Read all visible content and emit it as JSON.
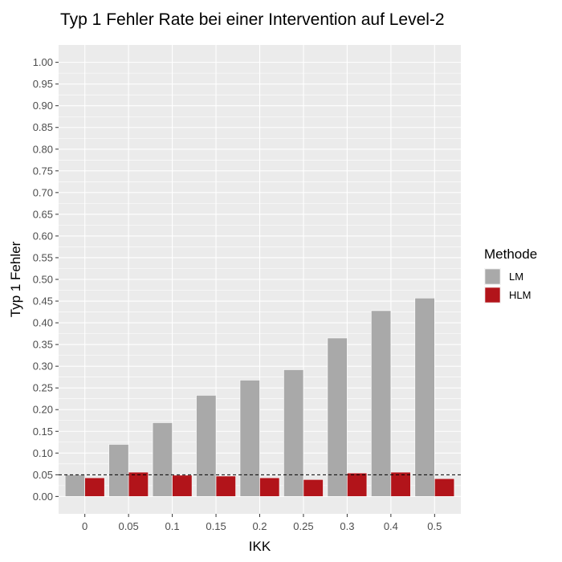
{
  "chart_data": {
    "type": "bar",
    "title": "Typ 1 Fehler Rate bei einer Intervention auf Level-2",
    "xlabel": "IKK",
    "ylabel": "Typ 1 Fehler",
    "categories": [
      "0",
      "0.05",
      "0.1",
      "0.15",
      "0.2",
      "0.25",
      "0.3",
      "0.4",
      "0.5"
    ],
    "series": [
      {
        "name": "LM",
        "color": "#a9a9a9",
        "values": [
          0.05,
          0.12,
          0.17,
          0.233,
          0.268,
          0.292,
          0.365,
          0.428,
          0.457
        ]
      },
      {
        "name": "HLM",
        "color": "#b2141a",
        "values": [
          0.043,
          0.056,
          0.049,
          0.047,
          0.043,
          0.039,
          0.054,
          0.056,
          0.041
        ]
      }
    ],
    "yticks": [
      "0.00",
      "0.05",
      "0.10",
      "0.15",
      "0.20",
      "0.25",
      "0.30",
      "0.35",
      "0.40",
      "0.45",
      "0.50",
      "0.55",
      "0.60",
      "0.65",
      "0.70",
      "0.75",
      "0.80",
      "0.85",
      "0.90",
      "0.95",
      "1.00"
    ],
    "ylim": [
      -0.04,
      1.04
    ],
    "reference_line": {
      "y": 0.05,
      "style": "dashed",
      "color": "#000000"
    },
    "grid": true,
    "panel_color": "#ebebeb",
    "legend": {
      "title": "Methode",
      "position": "right"
    }
  }
}
